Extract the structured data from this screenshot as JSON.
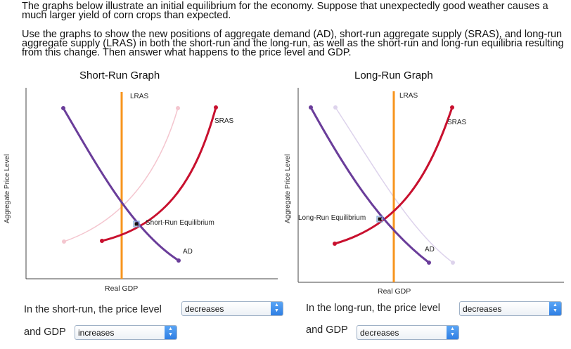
{
  "instructions": {
    "paragraph_1": "The graphs below illustrate an initial equilibrium for the economy. Suppose that unexpectedly good weather causes a much larger yield of corn crops than expected.",
    "paragraph_2": "Use the graphs to show the new positions of aggregate demand (AD), short-run aggregate supply (SRAS), and long-run aggregate supply (LRAS) in both the short-run and the long-run, as well as the short-run and long-run equilibria resulting from this change. Then answer what happens to the price level and GDP."
  },
  "colors": {
    "lras": "#f7941d",
    "ad": "#6a3d9a",
    "sras": "#c8102e",
    "sras_ghost": "#f4c6cf",
    "ad_ghost": "#ddd3ec",
    "axis": "#444444",
    "equilibrium_marker": "#111111"
  },
  "short_run": {
    "title": "Short-Run Graph",
    "y_axis_label": "Aggregate Price Level",
    "x_axis_label": "Real GDP",
    "lras_label": "LRAS",
    "sras_label": "SRAS",
    "ad_label": "AD",
    "equilibrium_label": "Short-Run Equilibrium"
  },
  "long_run": {
    "title": "Long-Run Graph",
    "y_axis_label": "Aggregate Price Level",
    "x_axis_label": "Real GDP",
    "lras_label": "LRAS",
    "sras_label": "SRAS",
    "ad_label": "AD",
    "equilibrium_label": "Long-Run Equilibrium"
  },
  "questions": {
    "short_run_price_prefix": "In the short-run, the price level",
    "short_run_price_value": "decreases",
    "short_run_gdp_prefix": "and GDP",
    "short_run_gdp_value": "increases",
    "long_run_price_prefix": "In the long-run, the price level",
    "long_run_price_value": "decreases",
    "long_run_gdp_prefix": "and GDP",
    "long_run_gdp_value": "decreases"
  },
  "icons": {
    "dropdown": "up-down-chevron-icon"
  }
}
